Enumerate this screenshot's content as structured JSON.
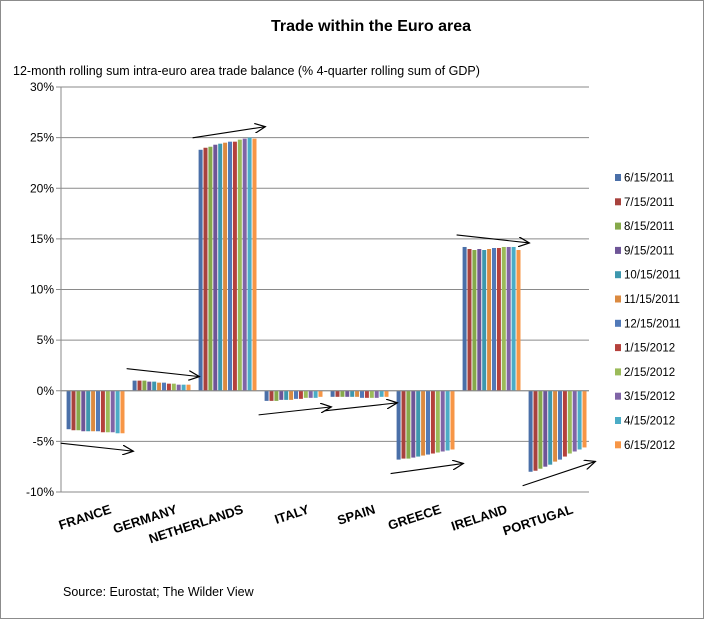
{
  "chart_data": {
    "type": "bar",
    "title": "Trade within the Euro area",
    "subtitle": "12-month rolling  sum intra-euro area trade balance (% 4-quarter rolling sum of GDP)",
    "source": "Source:  Eurostat; The Wilder View",
    "ylim": [
      -10,
      30
    ],
    "yticks": [
      30,
      25,
      20,
      15,
      10,
      5,
      0,
      -5,
      -10
    ],
    "ytick_labels": [
      "30%",
      "25%",
      "20%",
      "15%",
      "10%",
      "5%",
      "0%",
      "-5%",
      "-10%"
    ],
    "grid": true,
    "legend_position": "right",
    "categories": [
      "FRANCE",
      "GERMANY",
      "NETHERLANDS",
      "ITALY",
      "SPAIN",
      "GREECE",
      "IRELAND",
      "PORTUGAL"
    ],
    "trend_arrows": true,
    "series": [
      {
        "name": "6/15/2011",
        "color": "#4a6fa8",
        "values": [
          -3.8,
          1.0,
          23.8,
          -1.0,
          -0.6,
          -6.8,
          14.2,
          -8.0
        ]
      },
      {
        "name": "7/15/2011",
        "color": "#a8423d",
        "values": [
          -3.9,
          1.0,
          24.0,
          -1.0,
          -0.6,
          -6.7,
          14.0,
          -7.9
        ]
      },
      {
        "name": "8/15/2011",
        "color": "#86a94a",
        "values": [
          -3.9,
          1.0,
          24.1,
          -1.0,
          -0.6,
          -6.7,
          13.9,
          -7.7
        ]
      },
      {
        "name": "9/15/2011",
        "color": "#6e5597",
        "values": [
          -4.0,
          0.9,
          24.3,
          -0.9,
          -0.6,
          -6.6,
          14.0,
          -7.5
        ]
      },
      {
        "name": "10/15/2011",
        "color": "#3d97ae",
        "values": [
          -4.0,
          0.9,
          24.4,
          -0.9,
          -0.6,
          -6.5,
          13.9,
          -7.3
        ]
      },
      {
        "name": "11/15/2011",
        "color": "#db8a40",
        "values": [
          -4.0,
          0.8,
          24.5,
          -0.9,
          -0.6,
          -6.4,
          14.0,
          -7.0
        ]
      },
      {
        "name": "12/15/2011",
        "color": "#5179b8",
        "values": [
          -4.0,
          0.8,
          24.6,
          -0.8,
          -0.7,
          -6.3,
          14.1,
          -6.8
        ]
      },
      {
        "name": "1/15/2012",
        "color": "#b5413c",
        "values": [
          -4.1,
          0.7,
          24.6,
          -0.8,
          -0.7,
          -6.2,
          14.1,
          -6.5
        ]
      },
      {
        "name": "2/15/2012",
        "color": "#9bbb59",
        "values": [
          -4.1,
          0.7,
          24.8,
          -0.7,
          -0.7,
          -6.1,
          14.2,
          -6.2
        ]
      },
      {
        "name": "3/15/2012",
        "color": "#7f64a6",
        "values": [
          -4.1,
          0.6,
          24.9,
          -0.7,
          -0.7,
          -6.0,
          14.2,
          -6.0
        ]
      },
      {
        "name": "4/15/2012",
        "color": "#4bacc6",
        "values": [
          -4.2,
          0.6,
          25.0,
          -0.7,
          -0.6,
          -5.9,
          14.2,
          -5.8
        ]
      },
      {
        "name": "6/15/2012",
        "color": "#f79646",
        "values": [
          -4.2,
          0.6,
          24.9,
          -0.6,
          -0.6,
          -5.8,
          13.9,
          -5.6
        ]
      }
    ]
  }
}
